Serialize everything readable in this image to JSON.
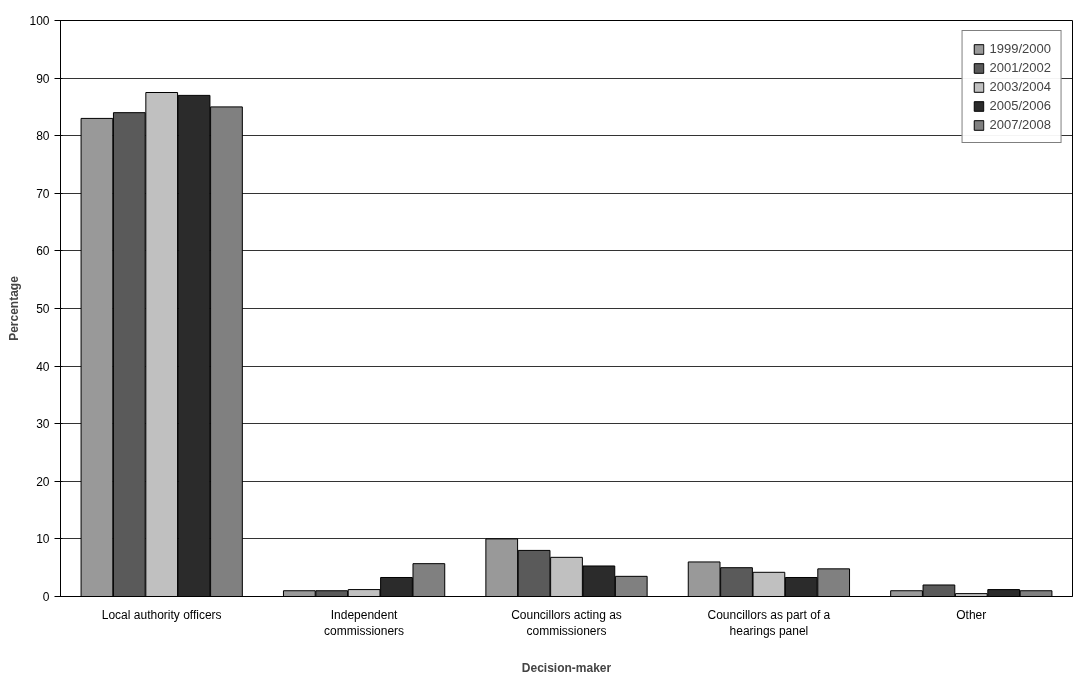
{
  "chart_data": {
    "type": "bar",
    "xlabel": "Decision-maker",
    "ylabel": "Percentage",
    "categories": [
      "Local authority officers",
      "Independent commissioners",
      "Councillors acting as commissioners",
      "Councillors as part of a hearings panel",
      "Other"
    ],
    "series": [
      {
        "name": "1999/2000",
        "color": "#999999",
        "values": [
          83,
          1,
          10,
          6,
          1
        ]
      },
      {
        "name": "2001/2002",
        "color": "#5a5a5a",
        "values": [
          84,
          1,
          8,
          5,
          2
        ]
      },
      {
        "name": "2003/2004",
        "color": "#c0c0c0",
        "values": [
          87.5,
          1.2,
          6.8,
          4.2,
          0.5
        ]
      },
      {
        "name": "2005/2006",
        "color": "#2b2b2b",
        "values": [
          87,
          3.3,
          5.3,
          3.3,
          1.2
        ]
      },
      {
        "name": "2007/2008",
        "color": "#808080",
        "values": [
          85,
          5.7,
          3.5,
          4.8,
          1
        ]
      }
    ],
    "ylim": [
      0,
      100
    ],
    "yticks": [
      0,
      10,
      20,
      30,
      40,
      50,
      60,
      70,
      80,
      90,
      100
    ],
    "grid": "y",
    "legend": "top right"
  }
}
